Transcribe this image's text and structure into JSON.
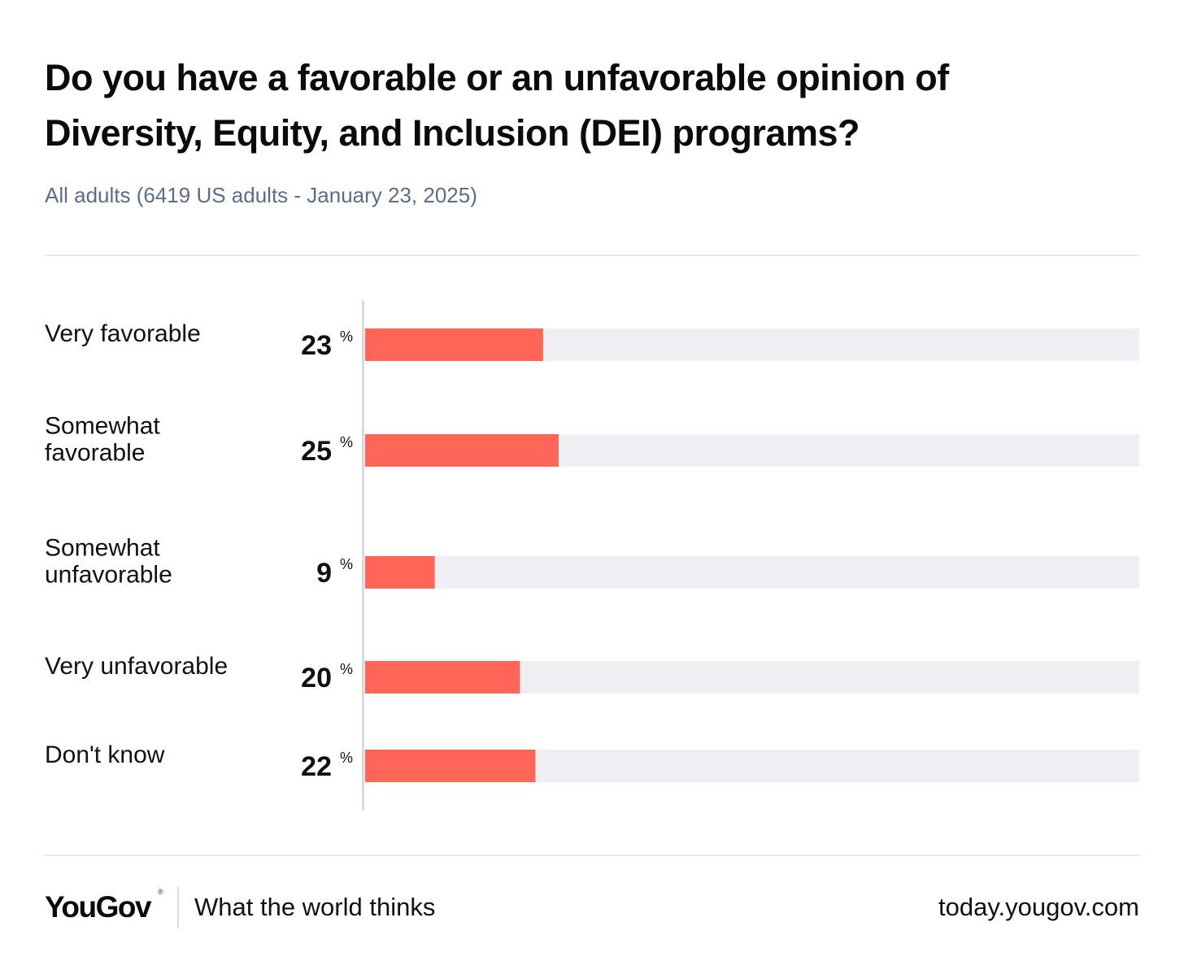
{
  "header": {
    "title": "Do you have a favorable or an unfavorable opinion of Diversity, Equity, and Inclusion (DEI) programs?",
    "subtitle": "All adults (6419 US adults - January 23, 2025)"
  },
  "colors": {
    "bar": "#ff6658",
    "track": "#efeff3",
    "axis": "#dadae2"
  },
  "chart_data": {
    "type": "bar",
    "orientation": "horizontal",
    "title": "Do you have a favorable or an unfavorable opinion of Diversity, Equity, and Inclusion (DEI) programs?",
    "subtitle": "All adults (6419 US adults - January 23, 2025)",
    "categories": [
      [
        "Very favorable"
      ],
      [
        "Somewhat",
        "favorable"
      ],
      [
        "Somewhat",
        "unfavorable"
      ],
      [
        "Very unfavorable"
      ],
      [
        "Don't know"
      ]
    ],
    "values": [
      23,
      25,
      9,
      20,
      22
    ],
    "unit": "%",
    "xlim": [
      0,
      100
    ],
    "xlabel": "",
    "ylabel": "",
    "grid": false,
    "legend": "none"
  },
  "footer": {
    "brand": "YouGov",
    "brand_mark": "®",
    "tagline": "What the world thinks",
    "site": "today.yougov.com"
  }
}
